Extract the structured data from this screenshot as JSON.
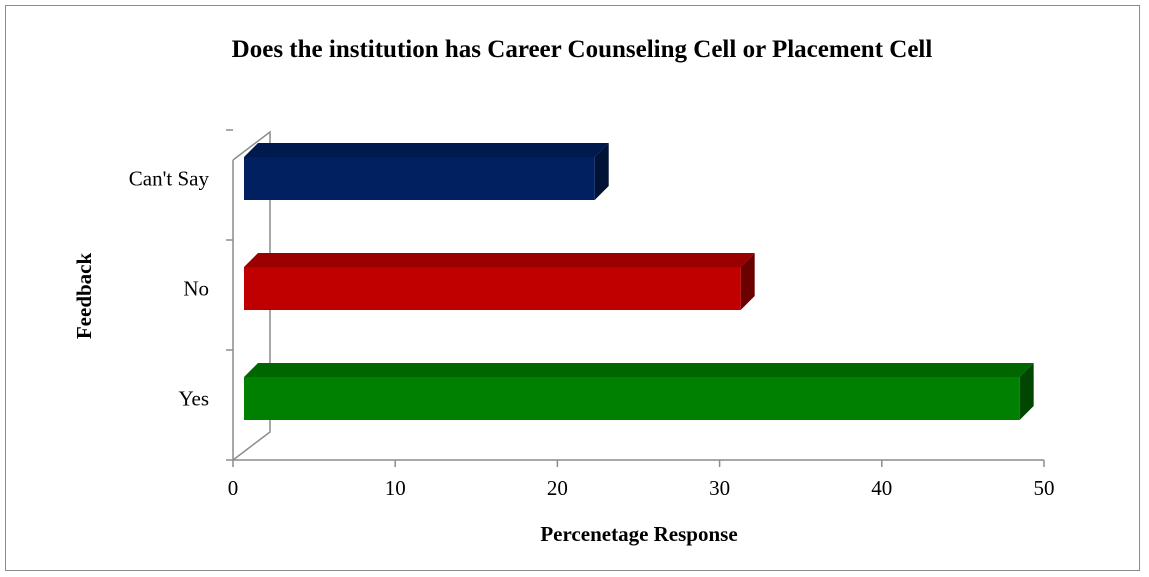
{
  "chart_data": {
    "type": "bar",
    "orientation": "horizontal",
    "style": "3d",
    "title": "Does the institution has Career Counseling Cell or Placement Cell",
    "xlabel": "Percenetage Response",
    "ylabel": "Feedback",
    "categories": [
      "Yes",
      "No",
      "Can't Say"
    ],
    "values": [
      48.5,
      31.3,
      22.3
    ],
    "colors": [
      "#008000",
      "#c00000",
      "#002060"
    ],
    "xlim": [
      0,
      50
    ],
    "xticks": [
      0,
      10,
      20,
      30,
      40,
      50
    ],
    "grid": false,
    "legend": "none"
  }
}
